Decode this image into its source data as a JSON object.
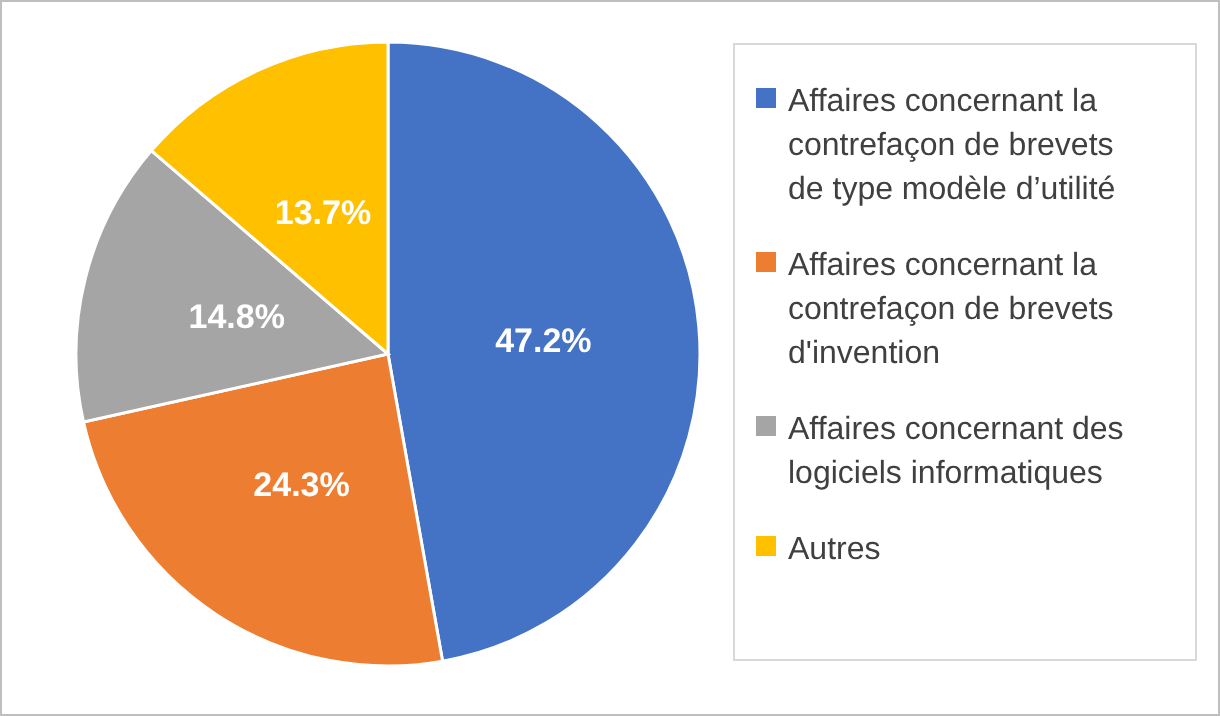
{
  "chart_data": {
    "type": "pie",
    "categories": [
      "Affaires concernant la contrefaçon de brevets de type modèle d’utilité",
      "Affaires concernant la contrefaçon de brevets d'invention",
      "Affaires concernant des logiciels informatiques",
      "Autres"
    ],
    "values": [
      47.2,
      24.3,
      14.8,
      13.7
    ],
    "colors": [
      "#4472c4",
      "#ed7d31",
      "#a5a5a5",
      "#ffc000"
    ],
    "value_labels": [
      "47.2%",
      "24.3%",
      "14.8%",
      "13.7%"
    ],
    "legend": "right"
  }
}
